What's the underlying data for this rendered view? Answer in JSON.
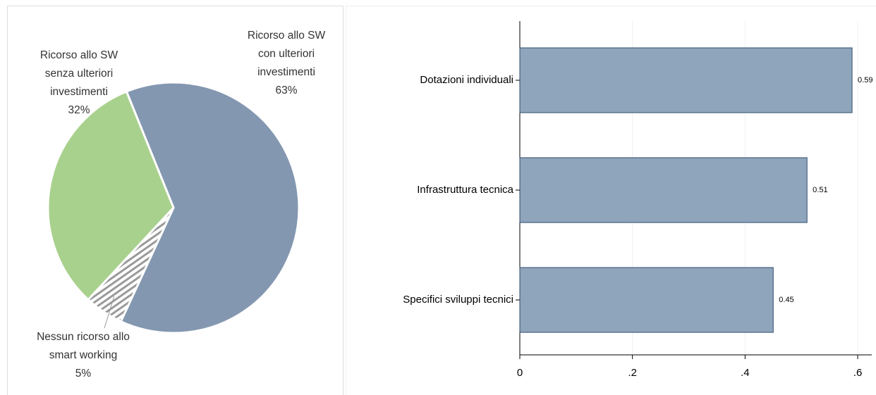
{
  "chart_data": [
    {
      "type": "pie",
      "categories": [
        "Ricorso allo SW con ulteriori investimenti",
        "Nessun ricorso allo smart working",
        "Ricorso allo SW senza ulteriori investimenti"
      ],
      "values": [
        63,
        5,
        32
      ],
      "value_labels": [
        "63%",
        "5%",
        "32%"
      ],
      "colors": [
        "#8497b0",
        "hatch",
        "#a9d18e"
      ]
    },
    {
      "type": "bar",
      "orientation": "horizontal",
      "categories": [
        "Dotazioni individuali",
        "Infrastruttura tecnica",
        "Specifici sviluppi tecnici"
      ],
      "values": [
        0.59,
        0.51,
        0.45
      ],
      "color": "#8fa5bb",
      "xlim": [
        0,
        0.625
      ],
      "xticks": [
        0,
        {
          "value": 0.2,
          "label": ".2"
        },
        {
          "value": 0.4,
          "label": ".4"
        },
        {
          "value": 0.6,
          "label": ".6"
        }
      ],
      "grid": true
    }
  ]
}
